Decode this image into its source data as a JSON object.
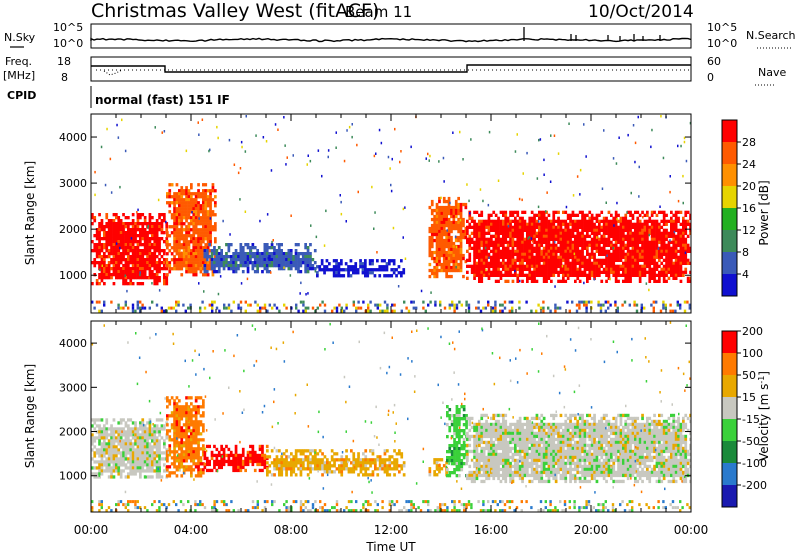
{
  "header": {
    "station": "Christmas Valley West (fitACF)",
    "beam": "Beam 11",
    "date": "10/Oct/2014"
  },
  "top_panels": {
    "nsky_label": "N.Sky",
    "nsky_ticks": [
      "10^5",
      "10^0"
    ],
    "nsearch_label": "N.Search",
    "nsearch_ticks": [
      "10^5",
      "10^0"
    ],
    "freq_label": "Freq.",
    "freq_unit": "[MHz]",
    "freq_ticks": [
      "18",
      "8"
    ],
    "nave_label": "Nave",
    "nave_ticks": [
      "60",
      "0"
    ],
    "cpid_label": "CPID",
    "cpid_value": "normal (fast) 151 IF"
  },
  "colors": {
    "power": [
      "#1010d0",
      "#3a5ab8",
      "#3d8a5a",
      "#22b020",
      "#e6d400",
      "#ff9000",
      "#ff5a00",
      "#ff0000"
    ],
    "velocity": [
      "#1a1ab0",
      "#2a7acd",
      "#1a8a3a",
      "#3ad13a",
      "#c8c8c0",
      "#e8a800",
      "#ff7a00",
      "#ff0000"
    ],
    "ground_scatter": "#c4c4bc"
  },
  "chart_data": [
    {
      "type": "heatmap",
      "name": "power",
      "ylabel": "Slant Range [km]",
      "yticks": [
        "1000",
        "2000",
        "3000",
        "4000"
      ],
      "ylim": [
        180,
        4500
      ],
      "xlim": [
        0,
        24
      ],
      "colorbar_label": "Power [dB]",
      "colorbar_ticks": [
        "4",
        "8",
        "12",
        "16",
        "20",
        "24",
        "28"
      ],
      "regions": [
        {
          "t": [
            0.0,
            3.0
          ],
          "r": [
            850,
            2350
          ],
          "level": 7
        },
        {
          "t": [
            3.0,
            5.0
          ],
          "r": [
            1000,
            3000
          ],
          "level": 6
        },
        {
          "t": [
            4.5,
            9.0
          ],
          "r": [
            1100,
            1700
          ],
          "level": 1
        },
        {
          "t": [
            9.0,
            12.5
          ],
          "r": [
            1000,
            1350
          ],
          "level": 0
        },
        {
          "t": [
            13.5,
            15.0
          ],
          "r": [
            1000,
            2700
          ],
          "level": 6
        },
        {
          "t": [
            15.0,
            24.0
          ],
          "r": [
            900,
            2400
          ],
          "level": 7
        }
      ]
    },
    {
      "type": "heatmap",
      "name": "velocity",
      "ylabel": "Slant Range [km]",
      "yticks": [
        "1000",
        "2000",
        "3000",
        "4000"
      ],
      "ylim": [
        180,
        4500
      ],
      "xlim": [
        0,
        24
      ],
      "xticks": [
        "00:00",
        "04:00",
        "08:00",
        "12:00",
        "16:00",
        "20:00",
        "00:00"
      ],
      "xlabel": "Time UT",
      "colorbar_label": "Velocity [m s^-1]",
      "colorbar_ticks": [
        "200",
        "100",
        "50",
        "15",
        "-15",
        "-50",
        "-100",
        "-200"
      ],
      "regions": [
        {
          "t": [
            0.0,
            3.0
          ],
          "r": [
            950,
            2300
          ],
          "level": 4
        },
        {
          "t": [
            3.0,
            4.5
          ],
          "r": [
            1000,
            2800
          ],
          "level": 6
        },
        {
          "t": [
            4.5,
            7.0
          ],
          "r": [
            1100,
            1700
          ],
          "level": 7
        },
        {
          "t": [
            7.0,
            12.5
          ],
          "r": [
            1000,
            1600
          ],
          "level": 5
        },
        {
          "t": [
            13.5,
            14.2
          ],
          "r": [
            1000,
            1400
          ],
          "level": 5
        },
        {
          "t": [
            14.2,
            15.0
          ],
          "r": [
            1000,
            2600
          ],
          "level": 3
        },
        {
          "t": [
            15.0,
            24.0
          ],
          "r": [
            900,
            2400
          ],
          "level": 4
        }
      ]
    }
  ]
}
